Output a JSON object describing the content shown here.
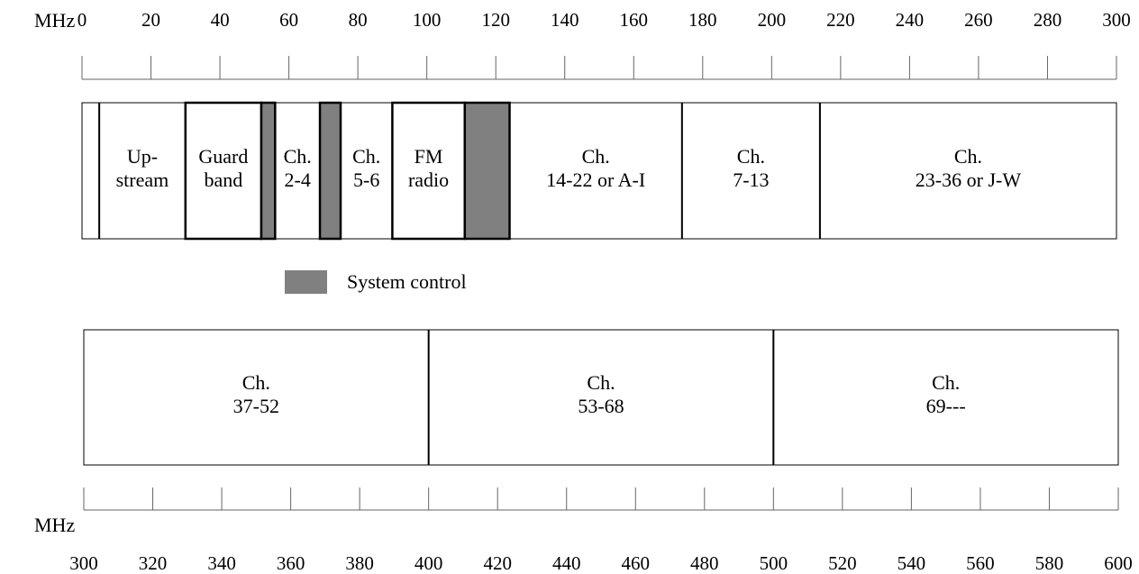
{
  "top_axis": {
    "unit": "MHz",
    "ticks": [
      "0",
      "20",
      "40",
      "60",
      "80",
      "100",
      "120",
      "140",
      "160",
      "180",
      "200",
      "220",
      "240",
      "260",
      "280",
      "300"
    ],
    "range": [
      0,
      300
    ]
  },
  "bottom_axis": {
    "unit": "MHz",
    "ticks": [
      "300",
      "320",
      "340",
      "360",
      "380",
      "400",
      "420",
      "440",
      "460",
      "480",
      "500",
      "520",
      "540",
      "560",
      "580",
      "600"
    ],
    "range": [
      300,
      600
    ]
  },
  "top_bands": [
    {
      "start": 0,
      "end": 5,
      "lines": [],
      "shaded": false,
      "bold": false
    },
    {
      "start": 5,
      "end": 30,
      "lines": [
        "Up-",
        "stream"
      ],
      "shaded": false,
      "bold": false
    },
    {
      "start": 30,
      "end": 52,
      "lines": [
        "Guard",
        "band"
      ],
      "shaded": false,
      "bold": true
    },
    {
      "start": 52,
      "end": 56,
      "lines": [],
      "shaded": true,
      "bold": true
    },
    {
      "start": 56,
      "end": 69,
      "lines": [
        "Ch.",
        "2-4"
      ],
      "shaded": false,
      "bold": false
    },
    {
      "start": 69,
      "end": 75,
      "lines": [],
      "shaded": true,
      "bold": true
    },
    {
      "start": 75,
      "end": 90,
      "lines": [
        "Ch.",
        "5-6"
      ],
      "shaded": false,
      "bold": false
    },
    {
      "start": 90,
      "end": 111,
      "lines": [
        "FM",
        "radio"
      ],
      "shaded": false,
      "bold": true
    },
    {
      "start": 111,
      "end": 124,
      "lines": [],
      "shaded": true,
      "bold": true
    },
    {
      "start": 124,
      "end": 174,
      "lines": [
        "Ch.",
        "14-22 or A-I"
      ],
      "shaded": false,
      "bold": false
    },
    {
      "start": 174,
      "end": 214,
      "lines": [
        "Ch.",
        "7-13"
      ],
      "shaded": false,
      "bold": false
    },
    {
      "start": 214,
      "end": 300,
      "lines": [
        "Ch.",
        "23-36 or J-W"
      ],
      "shaded": false,
      "bold": false
    }
  ],
  "bottom_bands": [
    {
      "start": 300,
      "end": 400,
      "lines": [
        "Ch.",
        "37-52"
      ],
      "shaded": false,
      "bold": false
    },
    {
      "start": 400,
      "end": 500,
      "lines": [
        "Ch.",
        "53-68"
      ],
      "shaded": false,
      "bold": false
    },
    {
      "start": 500,
      "end": 600,
      "lines": [
        "Ch.",
        "69---"
      ],
      "shaded": false,
      "bold": false
    }
  ],
  "legend": {
    "label": "System control",
    "color": "#808080"
  },
  "colors": {
    "shaded": "#808080",
    "line": "#000000",
    "tick": "#666666"
  }
}
